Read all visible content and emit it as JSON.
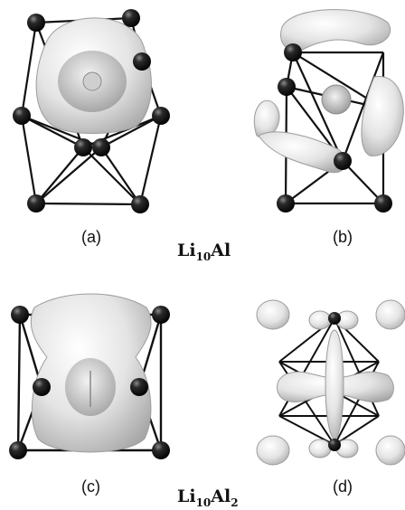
{
  "figure": {
    "panels": [
      {
        "label": "(a)"
      },
      {
        "label": "(b)"
      },
      {
        "label": "(c)"
      },
      {
        "label": "(d)"
      }
    ],
    "formulas": [
      {
        "base": "Li",
        "sub1": "10",
        "mid": "Al",
        "sub2": ""
      },
      {
        "base": "Li",
        "sub1": "10",
        "mid": "Al",
        "sub2": "2"
      }
    ],
    "colors": {
      "atom": "#1b1b1b",
      "isosurface": "#e2e2e2",
      "bond": "#111111"
    }
  }
}
